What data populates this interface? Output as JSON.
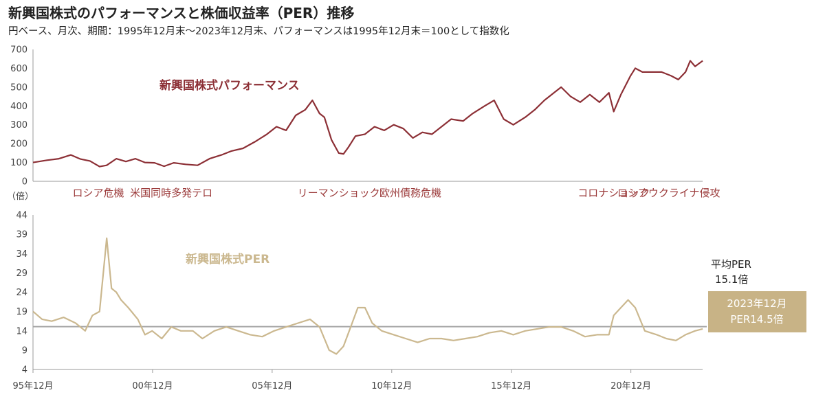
{
  "header": {
    "title": "新興国株式のパフォーマンスと株価収益率（PER）推移",
    "subtitle": "円ベース、月次、期間：1995年12月末～2023年12月末、パフォーマンスは1995年12月末＝100として指数化"
  },
  "colors": {
    "performance": "#8c2f35",
    "per": "#cbb88f",
    "average_line": "#a6a6a6",
    "badge": "#c8b386",
    "event_text": "#9b3a3a"
  },
  "chart_data": [
    {
      "type": "line",
      "ylim": [
        0,
        700
      ],
      "yticks": [
        0,
        100,
        200,
        300,
        400,
        500,
        600,
        700
      ],
      "xlim": [
        1995.917,
        2023.917
      ],
      "series": [
        {
          "name": "新興国株式パフォーマンス",
          "x": [
            1995.92,
            1996.5,
            1997.0,
            1997.5,
            1997.9,
            1998.3,
            1998.7,
            1999.0,
            1999.4,
            1999.8,
            2000.2,
            2000.6,
            2001.0,
            2001.4,
            2001.8,
            2002.3,
            2002.8,
            2003.3,
            2003.8,
            2004.2,
            2004.7,
            2005.2,
            2005.7,
            2006.1,
            2006.5,
            2006.9,
            2007.3,
            2007.6,
            2007.9,
            2008.1,
            2008.4,
            2008.7,
            2008.9,
            2009.1,
            2009.4,
            2009.8,
            2010.2,
            2010.6,
            2011.0,
            2011.4,
            2011.8,
            2012.2,
            2012.6,
            2013.0,
            2013.4,
            2013.9,
            2014.3,
            2014.8,
            2015.2,
            2015.6,
            2016.0,
            2016.5,
            2016.9,
            2017.3,
            2017.7,
            2018.0,
            2018.4,
            2018.8,
            2019.2,
            2019.6,
            2020.0,
            2020.2,
            2020.5,
            2020.9,
            2021.1,
            2021.4,
            2021.8,
            2022.2,
            2022.6,
            2022.9,
            2023.2,
            2023.4,
            2023.6,
            2023.92
          ],
          "values": [
            100,
            112,
            120,
            140,
            118,
            108,
            78,
            85,
            120,
            105,
            120,
            100,
            98,
            80,
            98,
            90,
            85,
            120,
            140,
            160,
            175,
            210,
            250,
            290,
            270,
            350,
            380,
            430,
            360,
            340,
            220,
            150,
            145,
            180,
            240,
            250,
            290,
            270,
            300,
            280,
            230,
            260,
            250,
            290,
            330,
            320,
            360,
            400,
            430,
            330,
            300,
            340,
            380,
            430,
            470,
            500,
            450,
            420,
            460,
            420,
            470,
            370,
            460,
            560,
            600,
            580,
            580,
            580,
            560,
            540,
            580,
            640,
            610,
            640
          ]
        }
      ]
    },
    {
      "type": "line",
      "ylabel": "（倍）",
      "ylim": [
        4,
        44
      ],
      "yticks": [
        4,
        9,
        14,
        19,
        24,
        29,
        34,
        39,
        44
      ],
      "xlim": [
        1995.917,
        2023.917
      ],
      "x_tick_labels": [
        "95年12月",
        "00年12月",
        "05年12月",
        "10年12月",
        "15年12月",
        "20年12月"
      ],
      "x_tick_values": [
        1995.917,
        2000.917,
        2005.917,
        2010.917,
        2015.917,
        2020.917
      ],
      "series": [
        {
          "name": "新興国株式PER",
          "x": [
            1995.92,
            1996.3,
            1996.7,
            1997.2,
            1997.7,
            1998.1,
            1998.4,
            1998.7,
            1999.0,
            1999.2,
            1999.4,
            1999.6,
            1999.9,
            2000.3,
            2000.6,
            2000.9,
            2001.3,
            2001.7,
            2002.1,
            2002.6,
            2003.0,
            2003.5,
            2004.0,
            2004.5,
            2005.0,
            2005.5,
            2006.0,
            2006.5,
            2007.0,
            2007.5,
            2007.9,
            2008.3,
            2008.6,
            2008.9,
            2009.2,
            2009.5,
            2009.8,
            2010.1,
            2010.5,
            2011.0,
            2011.5,
            2012.0,
            2012.5,
            2013.0,
            2013.5,
            2014.0,
            2014.5,
            2015.0,
            2015.5,
            2016.0,
            2016.5,
            2017.0,
            2017.5,
            2018.0,
            2018.5,
            2019.0,
            2019.5,
            2020.0,
            2020.2,
            2020.5,
            2020.8,
            2021.1,
            2021.5,
            2022.0,
            2022.4,
            2022.8,
            2023.2,
            2023.6,
            2023.92
          ],
          "values": [
            19,
            17,
            16.5,
            17.5,
            16,
            14,
            18,
            19,
            38,
            25,
            24,
            22,
            20,
            17,
            13,
            14,
            12,
            15,
            14,
            14,
            12,
            14,
            15,
            14,
            13,
            12.5,
            14,
            15,
            16,
            17,
            15,
            9,
            8,
            10,
            15,
            20,
            20,
            16,
            14,
            13,
            12,
            11,
            12,
            12,
            11.5,
            12,
            12.5,
            13.5,
            14,
            13,
            14,
            14.5,
            15,
            15,
            14,
            12.5,
            13,
            13,
            18,
            20,
            22,
            20,
            14,
            13,
            12,
            11.5,
            13,
            14,
            14.5
          ]
        }
      ],
      "average_value": 15.1,
      "average_label_line1": "平均PER",
      "average_label_line2": "15.1倍",
      "current_label_line1": "2023年12月",
      "current_label_line2": "PER14.5倍"
    }
  ],
  "series_labels": {
    "performance": "新興国株式パフォーマンス",
    "per": "新興国株式PER"
  },
  "events": [
    {
      "label": "ロシア危機",
      "x": 1998.65
    },
    {
      "label": "米国同時多発テロ",
      "x": 2001.7
    },
    {
      "label": "リーマンショック",
      "x": 2008.7
    },
    {
      "label": "欧州債務危機",
      "x": 2011.7
    },
    {
      "label": "コロナショック",
      "x": 2020.2
    },
    {
      "label": "ロシアウクライナ侵攻",
      "x": 2022.5
    }
  ]
}
